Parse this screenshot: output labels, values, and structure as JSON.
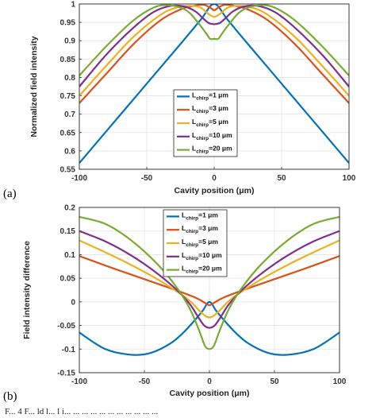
{
  "chart_data": [
    {
      "type": "line",
      "panel_label": "(a)",
      "xlabel": "Cavity position (μm)",
      "ylabel": "Normalized field intensity",
      "xlim": [
        -100,
        100
      ],
      "ylim": [
        0.55,
        1
      ],
      "xticks": [
        "-100",
        "-50",
        "0",
        "50",
        "100"
      ],
      "yticks": [
        "0.55",
        "0.6",
        "0.65",
        "0.7",
        "0.75",
        "0.8",
        "0.85",
        "0.9",
        "0.95",
        "1"
      ],
      "grid": true,
      "legend_position": "center-right",
      "series": [
        {
          "name": "L_chirp=1 μm",
          "color": "#0072BD",
          "x": [
            -100,
            -75,
            -50,
            -25,
            -10,
            0,
            10,
            25,
            50,
            75,
            100
          ],
          "y": [
            0.567,
            0.675,
            0.783,
            0.891,
            0.957,
            1.0,
            0.957,
            0.891,
            0.783,
            0.675,
            0.567
          ]
        },
        {
          "name": "L_chirp=3 μm",
          "color": "#D95319",
          "x": [
            -100,
            -80,
            -60,
            -40,
            -25,
            -15,
            -8,
            -3,
            0,
            3,
            8,
            15,
            25,
            40,
            60,
            80,
            100
          ],
          "y": [
            0.73,
            0.81,
            0.89,
            0.955,
            0.985,
            0.995,
            0.998,
            0.99,
            0.983,
            0.99,
            0.998,
            0.995,
            0.985,
            0.955,
            0.89,
            0.81,
            0.73
          ]
        },
        {
          "name": "L_chirp=5 μm",
          "color": "#EDB120",
          "x": [
            -100,
            -80,
            -60,
            -40,
            -28,
            -18,
            -10,
            -5,
            0,
            5,
            10,
            18,
            28,
            40,
            60,
            80,
            100
          ],
          "y": [
            0.75,
            0.832,
            0.91,
            0.97,
            0.99,
            0.995,
            0.99,
            0.975,
            0.965,
            0.975,
            0.99,
            0.995,
            0.99,
            0.97,
            0.91,
            0.832,
            0.75
          ]
        },
        {
          "name": "L_chirp=10 μm",
          "color": "#7E2F8E",
          "x": [
            -100,
            -80,
            -60,
            -45,
            -32,
            -22,
            -14,
            -8,
            -4,
            0,
            4,
            8,
            14,
            22,
            32,
            45,
            60,
            80,
            100
          ],
          "y": [
            0.775,
            0.862,
            0.935,
            0.978,
            0.995,
            0.993,
            0.98,
            0.96,
            0.948,
            0.945,
            0.948,
            0.96,
            0.98,
            0.993,
            0.995,
            0.978,
            0.935,
            0.862,
            0.775
          ]
        },
        {
          "name": "L_chirp=20 μm",
          "color": "#77AC30",
          "x": [
            -100,
            -80,
            -60,
            -45,
            -35,
            -25,
            -18,
            -10,
            -5,
            -3,
            0,
            3,
            5,
            10,
            18,
            25,
            35,
            45,
            60,
            80,
            100
          ],
          "y": [
            0.805,
            0.885,
            0.955,
            0.99,
            0.997,
            0.99,
            0.975,
            0.94,
            0.915,
            0.905,
            0.905,
            0.905,
            0.915,
            0.94,
            0.975,
            0.99,
            0.997,
            0.99,
            0.955,
            0.885,
            0.805
          ]
        }
      ]
    },
    {
      "type": "line",
      "panel_label": "(b)",
      "xlabel": "Cavity position (μm)",
      "ylabel": "Field intensity difference",
      "xlim": [
        -100,
        100
      ],
      "ylim": [
        -0.15,
        0.2
      ],
      "xticks": [
        "-100",
        "-50",
        "0",
        "50",
        "100"
      ],
      "yticks": [
        "-0.15",
        "-0.1",
        "-0.05",
        "0",
        "0.05",
        "0.1",
        "0.15",
        "0.2"
      ],
      "grid": true,
      "legend_position": "top-center",
      "series": [
        {
          "name": "L_chirp=1 μm",
          "color": "#0072BD",
          "x": [
            -100,
            -80,
            -60,
            -45,
            -30,
            -20,
            -10,
            -5,
            0,
            5,
            10,
            20,
            30,
            45,
            60,
            80,
            100
          ],
          "y": [
            -0.065,
            -0.1,
            -0.112,
            -0.108,
            -0.088,
            -0.065,
            -0.035,
            -0.018,
            0.0,
            -0.018,
            -0.035,
            -0.065,
            -0.088,
            -0.108,
            -0.112,
            -0.1,
            -0.065
          ]
        },
        {
          "name": "L_chirp=3 μm",
          "color": "#D95319",
          "x": [
            -100,
            -75,
            -50,
            -25,
            -10,
            -3,
            0,
            3,
            10,
            25,
            50,
            75,
            100
          ],
          "y": [
            0.097,
            0.072,
            0.048,
            0.024,
            0.008,
            -0.003,
            -0.007,
            -0.003,
            0.008,
            0.024,
            0.048,
            0.072,
            0.097
          ]
        },
        {
          "name": "L_chirp=5 μm",
          "color": "#EDB120",
          "x": [
            -100,
            -80,
            -60,
            -40,
            -25,
            -15,
            -8,
            -3,
            0,
            3,
            8,
            15,
            25,
            40,
            60,
            80,
            100
          ],
          "y": [
            0.13,
            0.105,
            0.078,
            0.048,
            0.022,
            0.002,
            -0.018,
            -0.03,
            -0.033,
            -0.03,
            -0.018,
            0.002,
            0.022,
            0.048,
            0.078,
            0.105,
            0.13
          ]
        },
        {
          "name": "L_chirp=10 μm",
          "color": "#7E2F8E",
          "x": [
            -100,
            -80,
            -60,
            -40,
            -25,
            -15,
            -8,
            -4,
            0,
            4,
            8,
            15,
            25,
            40,
            60,
            80,
            100
          ],
          "y": [
            0.15,
            0.128,
            0.098,
            0.06,
            0.025,
            -0.005,
            -0.035,
            -0.05,
            -0.055,
            -0.05,
            -0.035,
            -0.005,
            0.025,
            0.06,
            0.098,
            0.128,
            0.15
          ]
        },
        {
          "name": "L_chirp=20 μm",
          "color": "#77AC30",
          "x": [
            -100,
            -80,
            -60,
            -40,
            -25,
            -15,
            -8,
            -4,
            -2,
            0,
            2,
            4,
            8,
            15,
            25,
            40,
            60,
            80,
            100
          ],
          "y": [
            0.18,
            0.165,
            0.13,
            0.08,
            0.03,
            -0.015,
            -0.06,
            -0.09,
            -0.098,
            -0.1,
            -0.098,
            -0.09,
            -0.06,
            -0.015,
            0.03,
            0.08,
            0.13,
            0.165,
            0.18
          ]
        }
      ]
    }
  ],
  "legend_labels": [
    {
      "main": "L",
      "sub": "chirp",
      "rest": "=1 μm"
    },
    {
      "main": "L",
      "sub": "chirp",
      "rest": "=3 μm"
    },
    {
      "main": "L",
      "sub": "chirp",
      "rest": "=5 μm"
    },
    {
      "main": "L",
      "sub": "chirp",
      "rest": "=10 μm"
    },
    {
      "main": "L",
      "sub": "chirp",
      "rest": "=20 μm"
    }
  ],
  "caption_fragment": "F... 4 F... ld l... l i... ... ... ... ... ... ... ... ... ... ..."
}
